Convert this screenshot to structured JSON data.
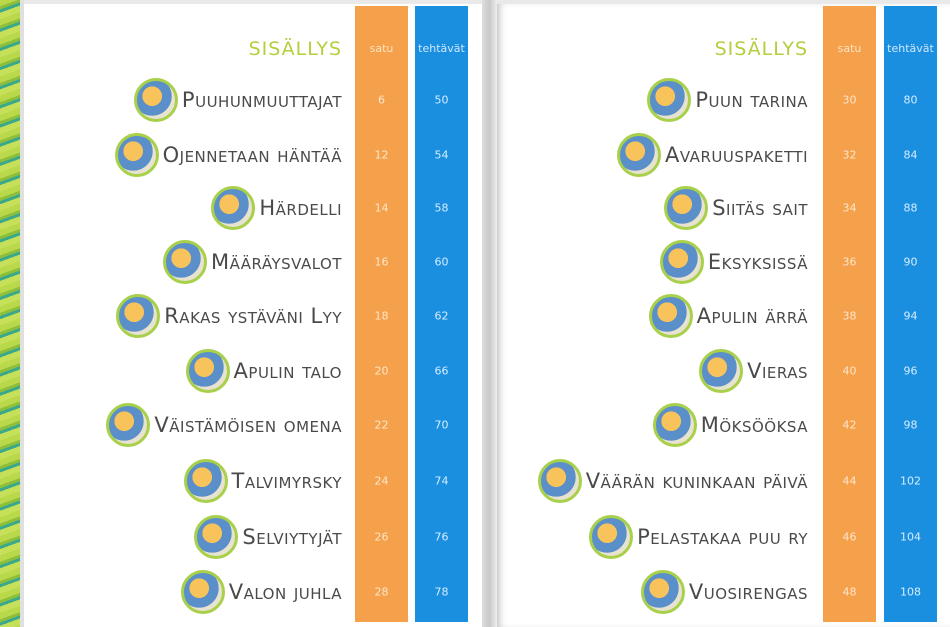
{
  "left": {
    "title": "SISÄLLYS",
    "col1": "satu",
    "col2": "tehtävät",
    "items": [
      {
        "name": "Puuhunmuuttajat",
        "satu": "6",
        "tehtavat": "50"
      },
      {
        "name": "Ojennetaan häntää",
        "satu": "12",
        "tehtavat": "54"
      },
      {
        "name": "Härdelli",
        "satu": "14",
        "tehtavat": "58"
      },
      {
        "name": "Määräysvalot",
        "satu": "16",
        "tehtavat": "60"
      },
      {
        "name": "Rakas ystäväni Lyy",
        "satu": "18",
        "tehtavat": "62"
      },
      {
        "name": "Apulin talo",
        "satu": "20",
        "tehtavat": "66"
      },
      {
        "name": "Väistämöisen omena",
        "satu": "22",
        "tehtavat": "70"
      },
      {
        "name": "Talvimyrsky",
        "satu": "24",
        "tehtavat": "74"
      },
      {
        "name": "Selviytyjät",
        "satu": "26",
        "tehtavat": "76"
      },
      {
        "name": "Valon juhla",
        "satu": "28",
        "tehtavat": "78"
      }
    ]
  },
  "right": {
    "title": "SISÄLLYS",
    "col1": "satu",
    "col2": "tehtävät",
    "items": [
      {
        "name": "Puun tarina",
        "satu": "30",
        "tehtavat": "80"
      },
      {
        "name": "Avaruuspaketti",
        "satu": "32",
        "tehtavat": "84"
      },
      {
        "name": "Siitäs sait",
        "satu": "34",
        "tehtavat": "88"
      },
      {
        "name": "Eksyksissä",
        "satu": "36",
        "tehtavat": "90"
      },
      {
        "name": "Apulin ärrä",
        "satu": "38",
        "tehtavat": "94"
      },
      {
        "name": "Vieras",
        "satu": "40",
        "tehtavat": "96"
      },
      {
        "name": "Möksööksa",
        "satu": "42",
        "tehtavat": "98"
      },
      {
        "name": "Väärän kuninkaan päivä",
        "satu": "44",
        "tehtavat": "102"
      },
      {
        "name": "Pelastakaa puu ry",
        "satu": "46",
        "tehtavat": "104"
      },
      {
        "name": "Vuosirengas",
        "satu": "48",
        "tehtavat": "108"
      }
    ]
  },
  "colors": {
    "satu": "#f5a04a",
    "tehtavat": "#1a8fe0",
    "title": "#b3cf3e"
  }
}
